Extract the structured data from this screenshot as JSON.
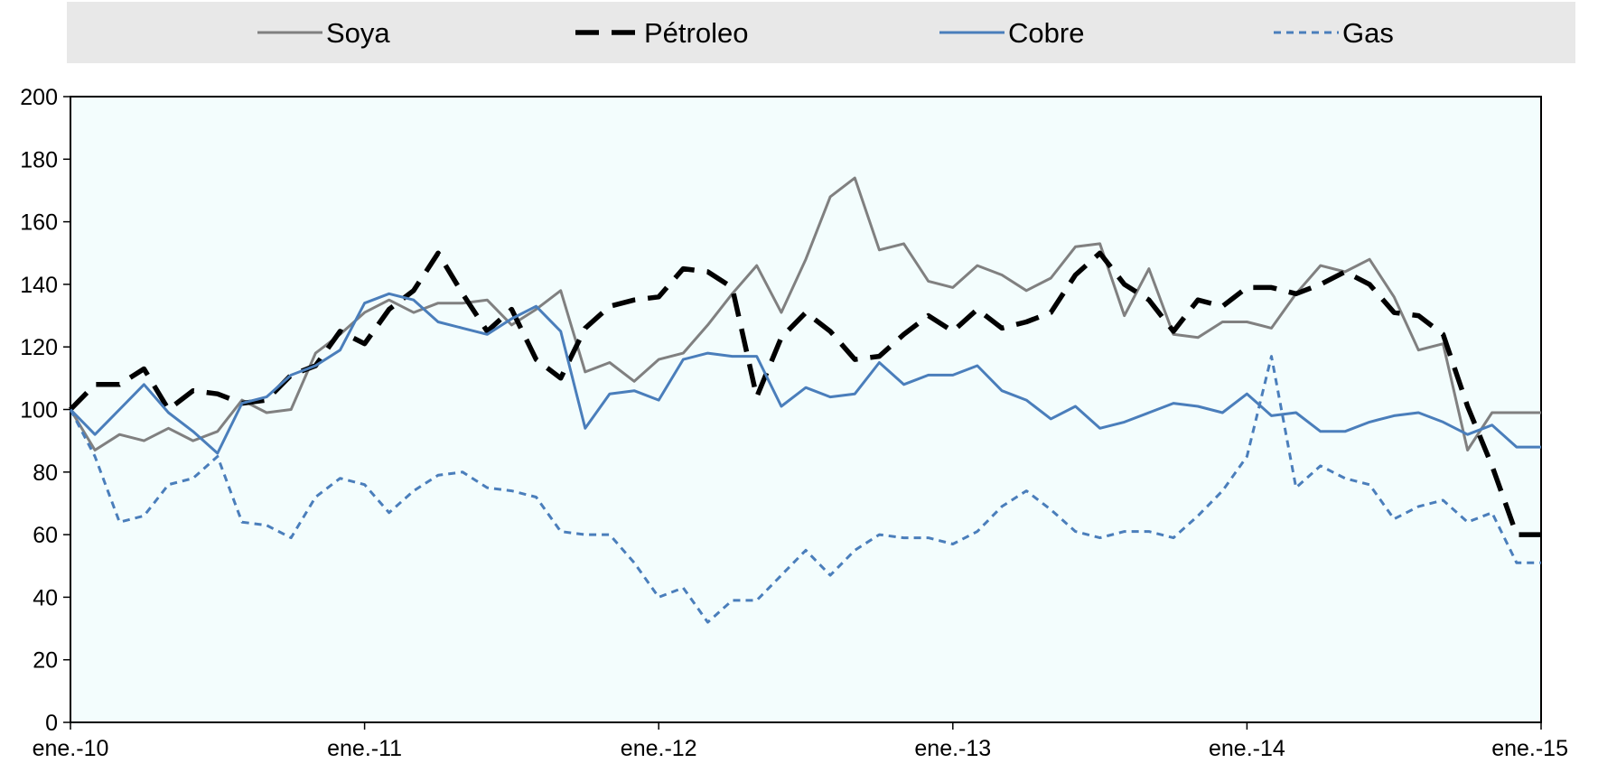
{
  "chart_data": {
    "type": "line",
    "title": "",
    "xlabel": "",
    "ylabel": "",
    "ylim": [
      0,
      200
    ],
    "yticks": [
      0,
      20,
      40,
      60,
      80,
      100,
      120,
      140,
      160,
      180,
      200
    ],
    "xlim": [
      "2010-01",
      "2015-01"
    ],
    "xticks": [
      {
        "date": "2010-01",
        "label": "ene.-10"
      },
      {
        "date": "2011-01",
        "label": "ene.-11"
      },
      {
        "date": "2012-01",
        "label": "ene.-12"
      },
      {
        "date": "2013-01",
        "label": "ene.-13"
      },
      {
        "date": "2014-01",
        "label": "ene.-14"
      },
      {
        "date": "2015-01",
        "label": "ene.-15"
      }
    ],
    "legend_position": "top",
    "grid": false,
    "background_color": "#f3fdfd",
    "x": [
      "2010-01",
      "2010-02",
      "2010-03",
      "2010-04",
      "2010-05",
      "2010-06",
      "2010-07",
      "2010-08",
      "2010-09",
      "2010-10",
      "2010-11",
      "2010-12",
      "2011-01",
      "2011-02",
      "2011-03",
      "2011-04",
      "2011-05",
      "2011-06",
      "2011-07",
      "2011-08",
      "2011-09",
      "2011-10",
      "2011-11",
      "2011-12",
      "2012-01",
      "2012-02",
      "2012-03",
      "2012-04",
      "2012-05",
      "2012-06",
      "2012-07",
      "2012-08",
      "2012-09",
      "2012-10",
      "2012-11",
      "2012-12",
      "2013-01",
      "2013-02",
      "2013-03",
      "2013-04",
      "2013-05",
      "2013-06",
      "2013-07",
      "2013-08",
      "2013-09",
      "2013-10",
      "2013-11",
      "2013-12",
      "2014-01",
      "2014-02",
      "2014-03",
      "2014-04",
      "2014-05",
      "2014-06",
      "2014-07",
      "2014-08",
      "2014-09",
      "2014-10",
      "2014-11",
      "2014-12",
      "2015-01"
    ],
    "series": [
      {
        "name": "Soya",
        "color": "#808080",
        "dash": "solid",
        "values": [
          100,
          87,
          92,
          90,
          94,
          90,
          93,
          103,
          99,
          100,
          118,
          124,
          131,
          135,
          131,
          134,
          134,
          135,
          127,
          132,
          138,
          112,
          115,
          109,
          116,
          118,
          127,
          137,
          146,
          131,
          148,
          168,
          174,
          151,
          153,
          141,
          139,
          146,
          143,
          138,
          142,
          152,
          153,
          130,
          145,
          124,
          123,
          128,
          128,
          126,
          137,
          146,
          144,
          148,
          136,
          119,
          121,
          87,
          99,
          99,
          99
        ]
      },
      {
        "name": "Pétroleo",
        "color": "#000000",
        "dash": "long-dash",
        "values": [
          100,
          108,
          108,
          113,
          100,
          106,
          105,
          102,
          103,
          111,
          114,
          125,
          121,
          132,
          138,
          150,
          137,
          125,
          132,
          116,
          110,
          126,
          133,
          135,
          136,
          145,
          144,
          139,
          104,
          123,
          131,
          125,
          116,
          117,
          124,
          130,
          125,
          132,
          126,
          128,
          131,
          143,
          150,
          140,
          135,
          125,
          135,
          133,
          139,
          139,
          137,
          140,
          144,
          140,
          131,
          130,
          124,
          101,
          82,
          60,
          60
        ]
      },
      {
        "name": "Cobre",
        "color": "#4a7ebb",
        "dash": "solid",
        "values": [
          100,
          92,
          100,
          108,
          99,
          93,
          86,
          102,
          104,
          111,
          114,
          119,
          134,
          137,
          135,
          128,
          126,
          124,
          129,
          133,
          125,
          94,
          105,
          106,
          103,
          116,
          118,
          117,
          117,
          101,
          107,
          104,
          105,
          115,
          108,
          111,
          111,
          114,
          106,
          103,
          97,
          101,
          94,
          96,
          99,
          102,
          101,
          99,
          105,
          98,
          99,
          93,
          93,
          96,
          98,
          99,
          96,
          92,
          95,
          88,
          88
        ]
      },
      {
        "name": "Gas",
        "color": "#4a7ebb",
        "dash": "short-dash",
        "values": [
          100,
          85,
          64,
          66,
          76,
          78,
          85,
          64,
          63,
          59,
          72,
          78,
          76,
          67,
          74,
          79,
          80,
          75,
          74,
          72,
          61,
          60,
          60,
          51,
          40,
          43,
          32,
          39,
          39,
          47,
          55,
          47,
          55,
          60,
          59,
          59,
          57,
          61,
          69,
          74,
          68,
          61,
          59,
          61,
          61,
          59,
          66,
          74,
          85,
          117,
          75,
          82,
          78,
          76,
          65,
          69,
          71,
          64,
          67,
          51,
          51
        ]
      }
    ]
  }
}
